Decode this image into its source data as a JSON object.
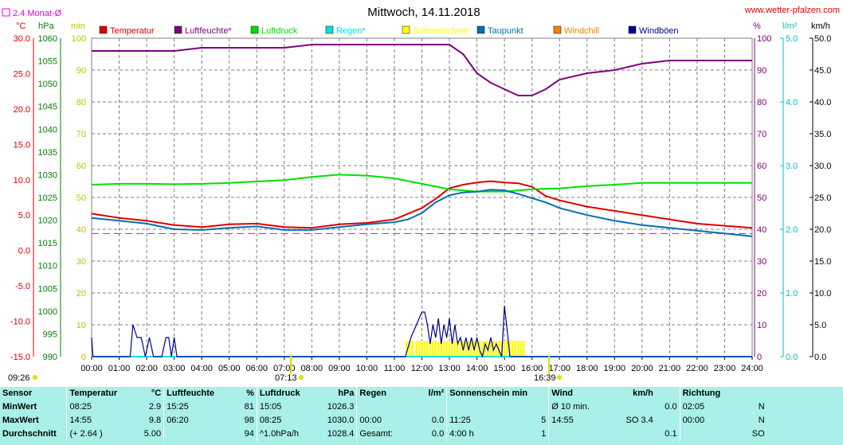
{
  "header": {
    "title": "Mittwoch, 14.11.2018",
    "site": "www.wetter-pfalzen.com",
    "avg_label": "2.4 Monat-Ø",
    "sunrise": "07:13",
    "sunset": "16:39",
    "start_time": "09:26"
  },
  "legend": [
    {
      "name": "Temperatur",
      "color": "#e00000"
    },
    {
      "name": "Luftfeuchte*",
      "color": "#800080"
    },
    {
      "name": "Luftdruck",
      "color": "#00e000"
    },
    {
      "name": "Regen*",
      "color": "#00e0e0"
    },
    {
      "name": "Sonnenschein",
      "color": "#ffff00"
    },
    {
      "name": "Taupunkt",
      "color": "#0070b0"
    },
    {
      "name": "Windchill",
      "color": "#ff8000"
    },
    {
      "name": "Windböen",
      "color": "#000090"
    }
  ],
  "axes": {
    "temp": {
      "unit": "°C",
      "color": "#e00000",
      "min": -15,
      "max": 30,
      "ticks": [
        "30.0",
        "25.0",
        "20.0",
        "15.0",
        "10.0",
        "5.0",
        "0.0",
        "-5.0",
        "-10.0",
        "-15.0"
      ]
    },
    "pressure": {
      "unit": "hPa",
      "color": "#008000",
      "min": 990,
      "max": 1060,
      "ticks": [
        "1060",
        "1055",
        "1050",
        "1045",
        "1040",
        "1035",
        "1030",
        "1025",
        "1020",
        "1015",
        "1010",
        "1005",
        "1000",
        "995",
        "990"
      ]
    },
    "sun": {
      "unit": "min",
      "color": "#c0c000",
      "min": 0,
      "max": 100,
      "ticks": [
        "100",
        "90",
        "80",
        "70",
        "60",
        "50",
        "40",
        "30",
        "20",
        "10",
        "0"
      ]
    },
    "humidity": {
      "unit": "%",
      "color": "#800080",
      "min": 0,
      "max": 100,
      "ticks": [
        "100",
        "90",
        "80",
        "70",
        "60",
        "50",
        "40",
        "30",
        "20",
        "10",
        "0"
      ]
    },
    "rain": {
      "unit": "l/m²",
      "color": "#00c0c0",
      "min": 0,
      "max": 5,
      "ticks": [
        "5.0",
        "4.0",
        "3.0",
        "2.0",
        "1.0",
        "0.0"
      ]
    },
    "wind": {
      "unit": "km/h",
      "color": "#000000",
      "min": 0,
      "max": 50,
      "ticks": [
        "50.0",
        "45.0",
        "40.0",
        "35.0",
        "30.0",
        "25.0",
        "20.0",
        "15.0",
        "10.0",
        "5.0",
        "0.0"
      ]
    },
    "x_ticks": [
      "00:00",
      "01:00",
      "02:00",
      "03:00",
      "04:00",
      "05:00",
      "06:00",
      "07:00",
      "08:00",
      "09:00",
      "10:00",
      "11:00",
      "12:00",
      "13:00",
      "14:00",
      "15:00",
      "16:00",
      "17:00",
      "18:00",
      "19:00",
      "20:00",
      "21:00",
      "22:00",
      "23:00",
      "24:00"
    ]
  },
  "chart_data": {
    "type": "line",
    "title": "Mittwoch, 14.11.2018",
    "x_unit": "hour",
    "xlim": [
      0,
      24
    ],
    "monthly_avg_temp": 2.4,
    "series": [
      {
        "name": "Temperatur",
        "axis": "temp",
        "color": "#e00000",
        "x": [
          0,
          1,
          2,
          3,
          4,
          5,
          6,
          7,
          8,
          9,
          10,
          11,
          11.5,
          12,
          12.5,
          13,
          13.5,
          14,
          14.5,
          15,
          15.5,
          16,
          16.5,
          17,
          18,
          19,
          20,
          21,
          22,
          23,
          24
        ],
        "y": [
          5.2,
          4.6,
          4.2,
          3.6,
          3.3,
          3.7,
          3.8,
          3.3,
          3.2,
          3.7,
          3.9,
          4.4,
          5.2,
          6.0,
          7.3,
          8.8,
          9.3,
          9.6,
          9.8,
          9.6,
          9.5,
          9.0,
          7.7,
          7.1,
          6.2,
          5.6,
          5.0,
          4.4,
          3.8,
          3.5,
          3.2
        ]
      },
      {
        "name": "Luftfeuchte*",
        "axis": "humidity",
        "color": "#800080",
        "x": [
          0,
          1,
          2,
          3,
          4,
          5,
          6,
          7,
          8,
          9,
          10,
          11,
          12,
          13,
          13.5,
          14,
          14.5,
          15,
          15.5,
          16,
          16.5,
          17,
          18,
          19,
          20,
          21,
          22,
          23,
          24
        ],
        "y": [
          96,
          96,
          96,
          96,
          97,
          97,
          97,
          97,
          98,
          98,
          98,
          98,
          98,
          98,
          95,
          89,
          86,
          84,
          82,
          82,
          84,
          87,
          89,
          90,
          92,
          93,
          93,
          93,
          93
        ]
      },
      {
        "name": "Luftdruck",
        "axis": "pressure",
        "color": "#00e000",
        "x": [
          0,
          1,
          2,
          3,
          4,
          5,
          6,
          7,
          8,
          9,
          10,
          11,
          12,
          13,
          14,
          15,
          16,
          17,
          18,
          19,
          20,
          21,
          22,
          23,
          24
        ],
        "y": [
          1027.8,
          1028.0,
          1028.0,
          1027.9,
          1028.0,
          1028.2,
          1028.5,
          1028.8,
          1029.5,
          1030.0,
          1029.8,
          1029.2,
          1028.0,
          1026.8,
          1026.3,
          1026.3,
          1026.8,
          1027.0,
          1027.5,
          1027.8,
          1028.2,
          1028.2,
          1028.2,
          1028.2,
          1028.2
        ]
      },
      {
        "name": "Taupunkt",
        "axis": "temp",
        "color": "#0070b0",
        "x": [
          0,
          1,
          2,
          3,
          4,
          5,
          6,
          7,
          8,
          9,
          10,
          11,
          11.5,
          12,
          12.5,
          13,
          13.5,
          14,
          14.5,
          15,
          15.5,
          16,
          16.5,
          17,
          18,
          19,
          20,
          21,
          22,
          23,
          24
        ],
        "y": [
          4.6,
          4.2,
          3.8,
          3.0,
          2.9,
          3.2,
          3.4,
          2.9,
          2.9,
          3.3,
          3.7,
          4.0,
          4.4,
          5.3,
          6.8,
          7.8,
          8.2,
          8.3,
          8.6,
          8.5,
          8.0,
          7.4,
          6.8,
          6.0,
          5.0,
          4.2,
          3.6,
          3.2,
          2.8,
          2.4,
          2.0
        ]
      },
      {
        "name": "Regen*",
        "axis": "rain",
        "color": "#00e0e0",
        "x": [
          0,
          24
        ],
        "y": [
          0,
          0
        ]
      },
      {
        "name": "Windböen",
        "axis": "wind",
        "color": "#000090",
        "x": [
          0,
          0.05,
          0.1,
          1.4,
          1.5,
          1.65,
          1.8,
          1.95,
          2.1,
          2.25,
          2.4,
          2.55,
          2.7,
          2.8,
          2.9,
          3.0,
          3.1,
          11.4,
          11.6,
          11.8,
          12.0,
          12.1,
          12.2,
          12.3,
          12.4,
          12.5,
          12.6,
          12.7,
          12.8,
          12.9,
          13.0,
          13.1,
          13.2,
          13.3,
          13.4,
          13.5,
          13.6,
          13.7,
          13.8,
          13.9,
          14.0,
          14.1,
          14.2,
          14.3,
          14.4,
          14.5,
          14.6,
          14.7,
          14.8,
          14.9,
          15.0,
          15.1,
          15.2,
          15.3,
          24
        ],
        "y": [
          3,
          0,
          0,
          0,
          5,
          3,
          3,
          0,
          3,
          0,
          0,
          0,
          3,
          3,
          0,
          3,
          0,
          0,
          3,
          5,
          7,
          7,
          5,
          2,
          5,
          3,
          6,
          2,
          5,
          3,
          6,
          2,
          5,
          2,
          3,
          1,
          3,
          1,
          3,
          1,
          3,
          1,
          0,
          2,
          1,
          3,
          1,
          2,
          1,
          0,
          8,
          4,
          0,
          0,
          0
        ]
      },
      {
        "name": "Sonnenschein",
        "axis": "sun",
        "type": "bar",
        "color": "#ffff00",
        "x": [
          11.45,
          11.55,
          11.65,
          11.8,
          11.9,
          12.0,
          12.1,
          12.2,
          12.3,
          12.4,
          12.5,
          12.6,
          12.7,
          12.8,
          12.9,
          13.0,
          13.1,
          13.2,
          13.3,
          13.4,
          13.5,
          13.6,
          13.7,
          13.8,
          13.9,
          14.0,
          14.1,
          14.2,
          14.3,
          14.4,
          14.5,
          14.6,
          14.7,
          14.8,
          14.9,
          15.0,
          15.1,
          15.2,
          15.3,
          15.4,
          15.5,
          15.6,
          15.7
        ],
        "y": [
          5,
          5,
          5,
          5,
          5,
          5,
          5,
          5,
          5,
          5,
          5,
          5,
          5,
          5,
          5,
          5,
          5,
          5,
          5,
          5,
          5,
          5,
          5,
          5,
          5,
          5,
          5,
          5,
          5,
          5,
          5,
          5,
          5,
          5,
          5,
          5,
          5,
          5,
          5,
          5,
          5,
          5,
          5
        ]
      }
    ]
  },
  "summary": {
    "headers": [
      "Sensor",
      "Temperatur",
      "°C",
      "Luftfeuchte",
      "%",
      "Luftdruck",
      "hPa",
      "Regen",
      "l/m²",
      "Sonnenschein min",
      "",
      "Wind",
      "km/h",
      "",
      "Richtung",
      "",
      ""
    ],
    "rows": [
      [
        "MinWert",
        "08:25",
        "2.9",
        "15:25",
        "81",
        "15:05",
        "1026.3",
        "",
        "",
        "",
        "",
        "Ø 10 min.",
        "",
        "0.0",
        "02:05",
        "N",
        ""
      ],
      [
        "MaxWert",
        "14:55",
        "9.8",
        "06:20",
        "98",
        "08:25",
        "1030.0",
        "00:00",
        "0.0",
        "11:25",
        "5",
        "14:55",
        "SO 3.4",
        "",
        "00:00",
        "N",
        ""
      ],
      [
        "Durchschnitt",
        "(+ 2.64 )",
        "5.00",
        "",
        "94",
        "^1.0hPa/h",
        "1028.4",
        "Gesamt:",
        "0.0",
        "4:00 h",
        "1",
        "",
        "",
        "0.1",
        "",
        "SO",
        ""
      ]
    ]
  }
}
